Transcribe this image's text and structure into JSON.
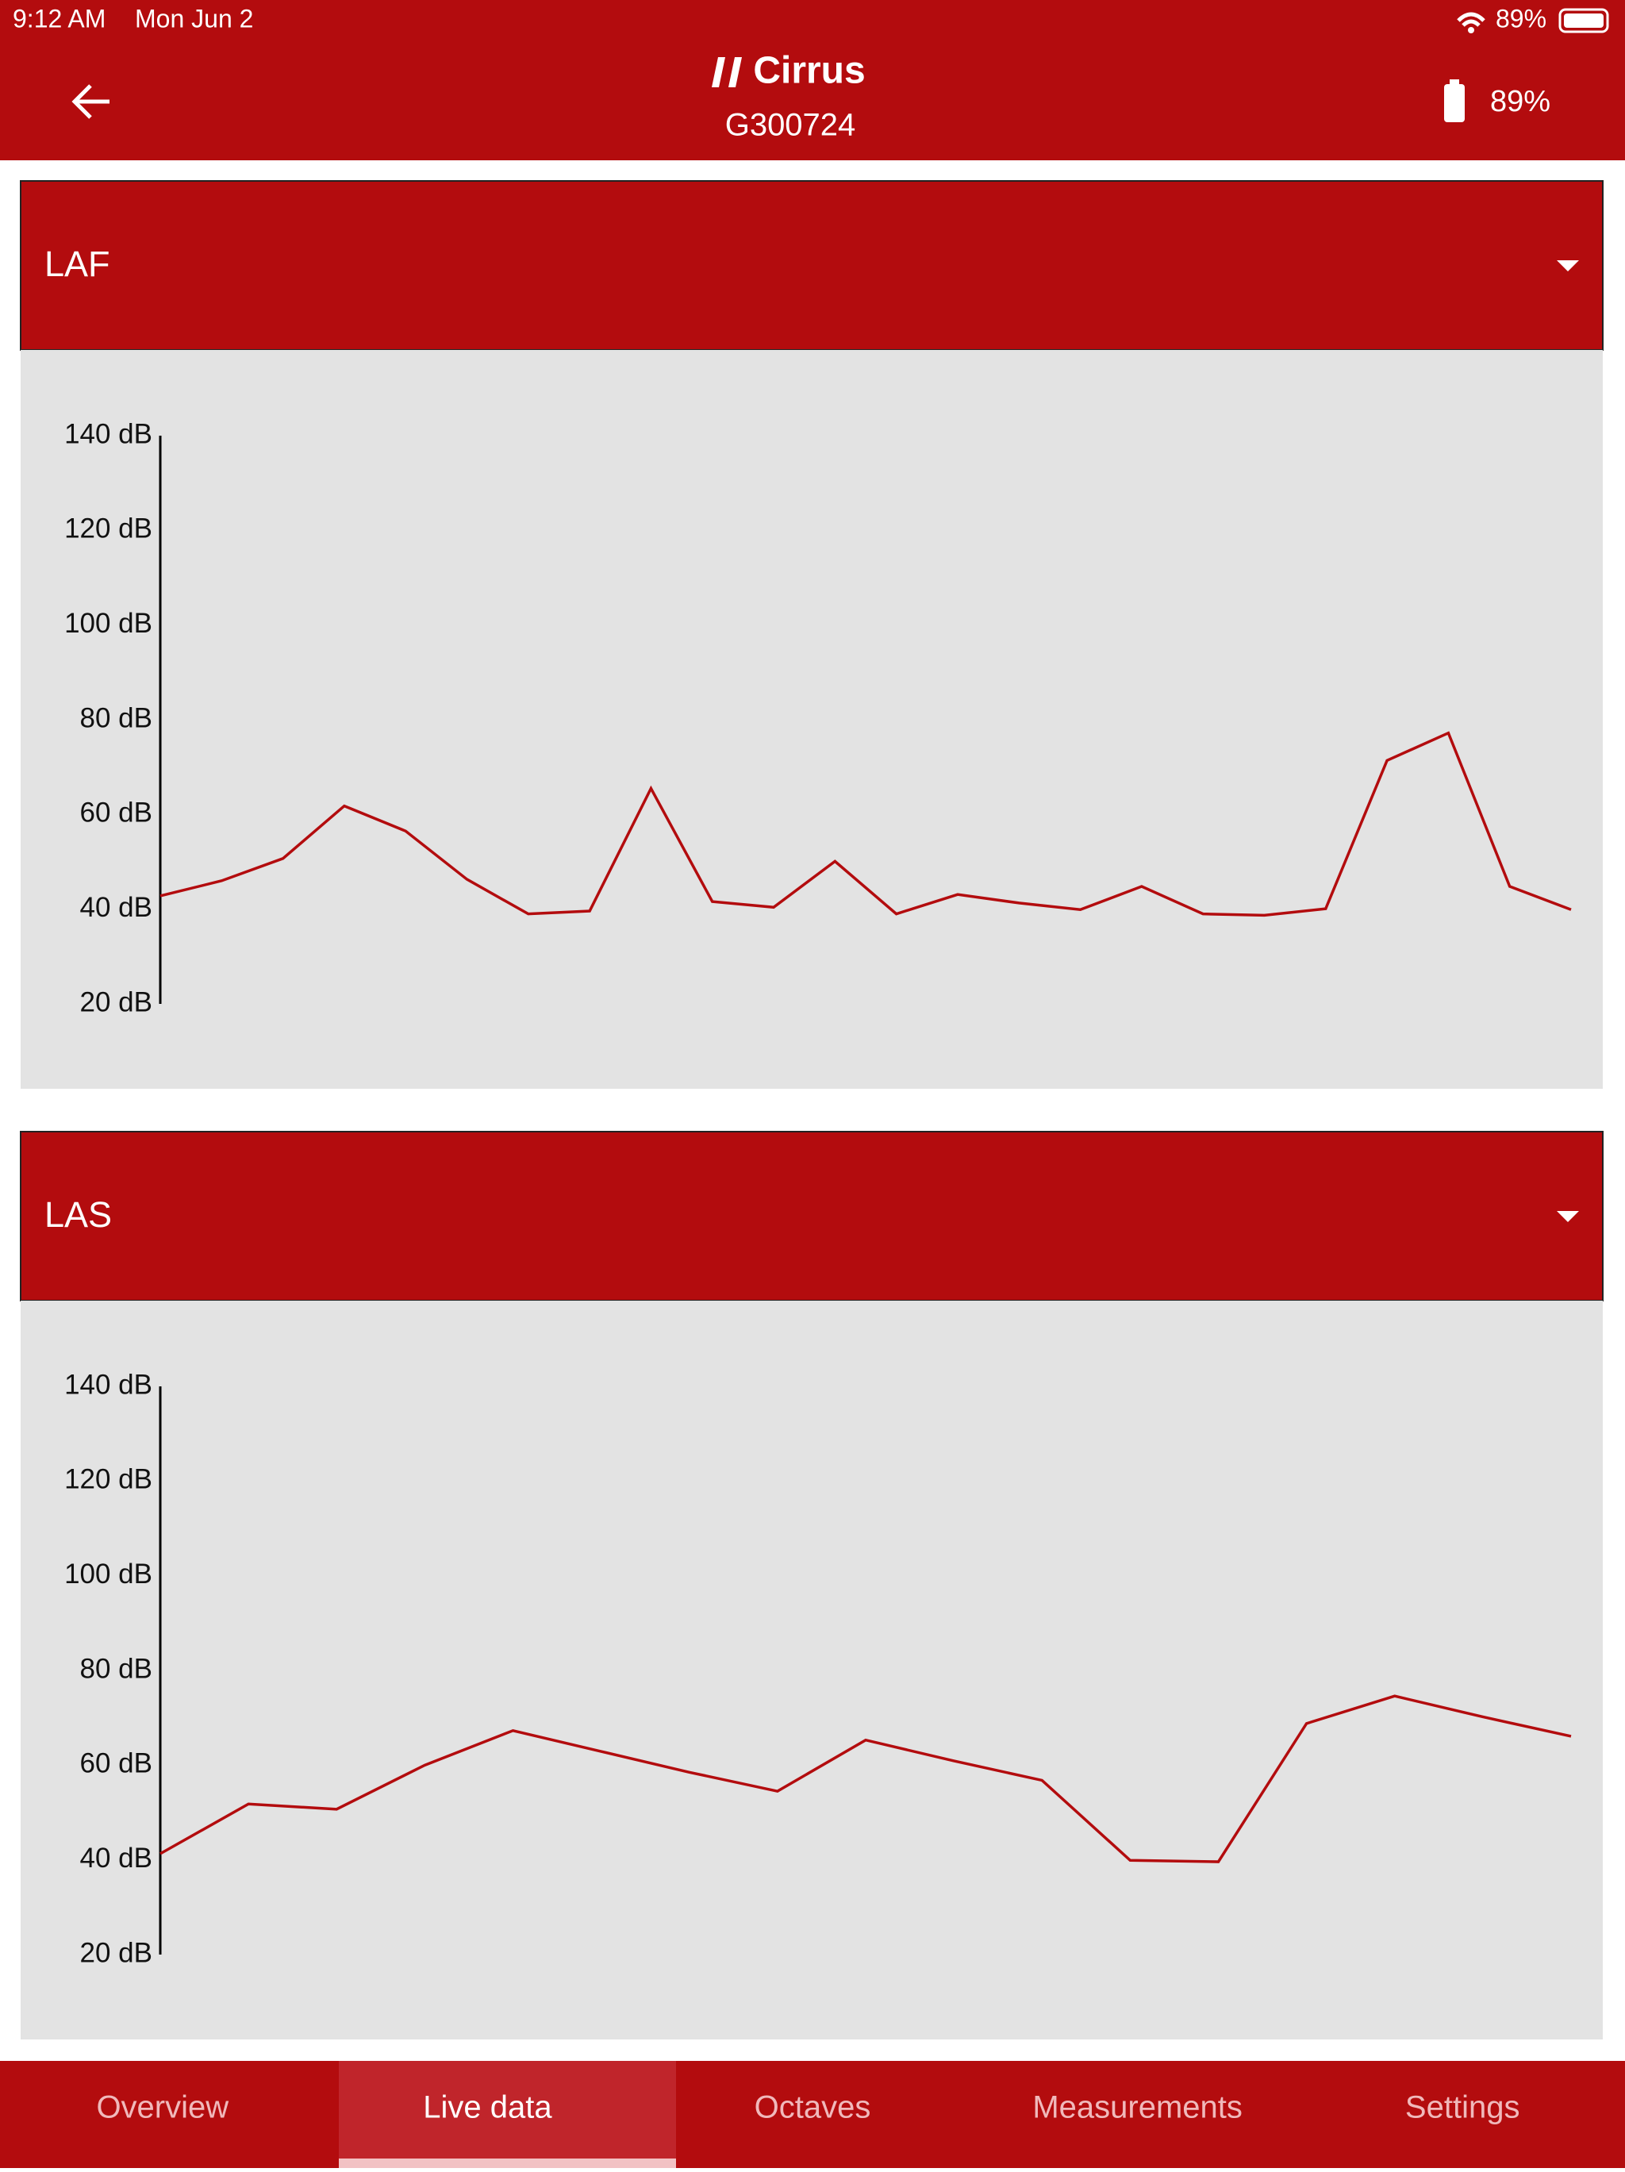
{
  "status_bar": {
    "time": "9:12 AM",
    "date": "Mon Jun 2",
    "battery": "89%"
  },
  "header": {
    "logo": "Cirrus",
    "device": "G300724",
    "battery": "89%"
  },
  "chart_data": [
    {
      "type": "line",
      "title": "LAF",
      "color": "#b30c0e",
      "values": [
        42.8,
        46.0,
        50.7,
        61.8,
        56.5,
        46.3,
        39.0,
        39.6,
        65.5,
        41.6,
        40.4,
        50.1,
        39.0,
        43.1,
        41.3,
        39.9,
        44.8,
        39.0,
        38.7,
        40.1,
        71.4,
        77.2,
        44.8,
        39.9
      ],
      "ylim": [
        20,
        140
      ],
      "yticks": [
        {
          "value": 20,
          "label": "20 dB"
        },
        {
          "value": 40,
          "label": "40 dB"
        },
        {
          "value": 60,
          "label": "60 dB"
        },
        {
          "value": 80,
          "label": "80 dB"
        },
        {
          "value": 100,
          "label": "100 dB"
        },
        {
          "value": 120,
          "label": "120 dB"
        },
        {
          "value": 140,
          "label": "140 dB"
        }
      ]
    },
    {
      "type": "line",
      "title": "LAS",
      "color": "#b30c0e",
      "values": [
        41.3,
        51.8,
        50.7,
        60.0,
        67.3,
        62.9,
        58.5,
        54.5,
        65.3,
        60.9,
        56.8,
        39.9,
        39.6,
        68.8,
        74.6,
        70.2,
        66.1
      ],
      "ylim": [
        20,
        140
      ],
      "yticks": [
        {
          "value": 20,
          "label": "20 dB"
        },
        {
          "value": 40,
          "label": "40 dB"
        },
        {
          "value": 60,
          "label": "60 dB"
        },
        {
          "value": 80,
          "label": "80 dB"
        },
        {
          "value": 100,
          "label": "100 dB"
        },
        {
          "value": 120,
          "label": "120 dB"
        },
        {
          "value": 140,
          "label": "140 dB"
        }
      ]
    }
  ],
  "tabs": [
    "Overview",
    "Live data",
    "Octaves",
    "Measurements",
    "Settings"
  ]
}
